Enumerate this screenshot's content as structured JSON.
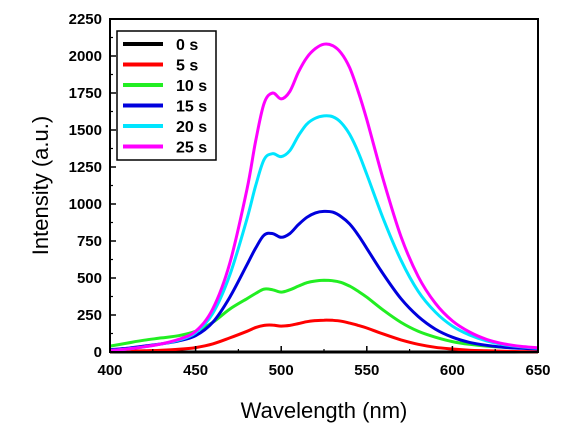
{
  "chart_data": {
    "type": "line",
    "xlabel": "Wavelength (nm)",
    "ylabel": "Intensity (a.u.)",
    "xlim": [
      400,
      650
    ],
    "ylim": [
      0,
      2250
    ],
    "x_ticks": [
      400,
      450,
      500,
      550,
      600,
      650
    ],
    "y_ticks": [
      0,
      250,
      500,
      750,
      1000,
      1250,
      1500,
      1750,
      2000,
      2250
    ],
    "x_tick_labels": [
      "400",
      "450",
      "500",
      "550",
      "600",
      "650"
    ],
    "y_tick_labels": [
      "0",
      "250",
      "500",
      "750",
      "1000",
      "1250",
      "1500",
      "1750",
      "2000",
      "2250"
    ],
    "grid": false,
    "legend_position": "top-left",
    "x": [
      400,
      410,
      420,
      430,
      440,
      450,
      460,
      470,
      480,
      485,
      490,
      495,
      500,
      505,
      510,
      515,
      520,
      525,
      530,
      535,
      540,
      545,
      550,
      560,
      570,
      580,
      590,
      600,
      610,
      620,
      630,
      640,
      650
    ],
    "series": [
      {
        "name": "0 s",
        "color": "#000000",
        "values": [
          0,
          0,
          0,
          0,
          0,
          0,
          0,
          0,
          0,
          0,
          0,
          0,
          0,
          0,
          0,
          0,
          0,
          0,
          0,
          0,
          0,
          0,
          0,
          0,
          0,
          0,
          0,
          0,
          0,
          0,
          0,
          0,
          0
        ]
      },
      {
        "name": "5 s",
        "color": "#ff0000",
        "values": [
          3,
          5,
          8,
          12,
          18,
          30,
          55,
          95,
          140,
          165,
          180,
          182,
          175,
          180,
          192,
          205,
          212,
          215,
          214,
          208,
          195,
          180,
          162,
          120,
          82,
          52,
          32,
          20,
          12,
          8,
          5,
          3,
          2
        ]
      },
      {
        "name": "10 s",
        "color": "#22ee22",
        "values": [
          40,
          60,
          80,
          95,
          110,
          140,
          200,
          290,
          360,
          395,
          425,
          420,
          405,
          420,
          445,
          468,
          480,
          485,
          482,
          470,
          445,
          410,
          370,
          280,
          200,
          140,
          100,
          70,
          52,
          40,
          32,
          28,
          25
        ]
      },
      {
        "name": "15 s",
        "color": "#0000dd",
        "values": [
          15,
          25,
          40,
          55,
          75,
          110,
          200,
          370,
          590,
          700,
          790,
          800,
          775,
          800,
          860,
          910,
          940,
          950,
          945,
          915,
          865,
          790,
          700,
          520,
          360,
          240,
          155,
          100,
          65,
          45,
          32,
          25,
          20
        ]
      },
      {
        "name": "20 s",
        "color": "#00e5ff",
        "values": [
          10,
          20,
          35,
          55,
          80,
          130,
          260,
          520,
          900,
          1120,
          1300,
          1340,
          1320,
          1360,
          1460,
          1540,
          1580,
          1595,
          1590,
          1550,
          1470,
          1350,
          1200,
          890,
          620,
          410,
          270,
          175,
          115,
          75,
          50,
          35,
          25
        ]
      },
      {
        "name": "25 s",
        "color": "#ff00ff",
        "values": [
          10,
          20,
          35,
          55,
          85,
          140,
          290,
          600,
          1100,
          1420,
          1680,
          1750,
          1710,
          1760,
          1890,
          1990,
          2050,
          2080,
          2070,
          2020,
          1920,
          1760,
          1570,
          1150,
          780,
          510,
          330,
          210,
          135,
          85,
          55,
          38,
          28
        ]
      }
    ]
  }
}
